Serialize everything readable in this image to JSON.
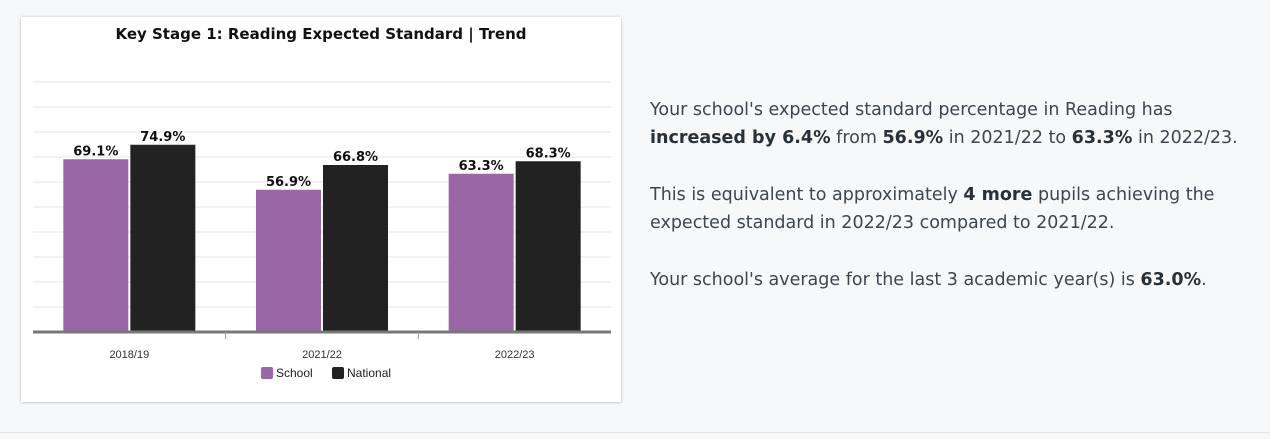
{
  "chart_data": {
    "type": "bar",
    "title": "Key Stage 1: Reading Expected Standard | Trend",
    "categories": [
      "2018/19",
      "2021/22",
      "2022/23"
    ],
    "series": [
      {
        "name": "School",
        "values": [
          69.1,
          56.9,
          63.3
        ],
        "labels": [
          "69.1%",
          "56.9%",
          "63.3%"
        ],
        "color": "#9b66a6"
      },
      {
        "name": "National",
        "values": [
          74.9,
          66.8,
          68.3
        ],
        "labels": [
          "74.9%",
          "66.8%",
          "68.3%"
        ],
        "color": "#222222"
      }
    ],
    "ylim": [
      0,
      100
    ],
    "grid": true,
    "legend": "bottom-center",
    "xlabel": "",
    "ylabel": ""
  },
  "summary": {
    "p1": [
      {
        "text": "Your school's expected standard percentage in Reading has ",
        "bold": false
      },
      {
        "text": "increased by 6.4%",
        "bold": true
      },
      {
        "text": " from ",
        "bold": false
      },
      {
        "text": "56.9%",
        "bold": true
      },
      {
        "text": " in 2021/22 to ",
        "bold": false
      },
      {
        "text": "63.3%",
        "bold": true
      },
      {
        "text": " in 2022/23.",
        "bold": false
      }
    ],
    "p2": [
      {
        "text": "This is equivalent to approximately ",
        "bold": false
      },
      {
        "text": "4 more",
        "bold": true
      },
      {
        "text": " pupils achieving the expected standard in 2022/23 compared to 2021/22.",
        "bold": false
      }
    ],
    "p3": [
      {
        "text": "Your school's average for the last 3 academic year(s) is ",
        "bold": false
      },
      {
        "text": "63.0%",
        "bold": true
      },
      {
        "text": ".",
        "bold": false
      }
    ]
  }
}
